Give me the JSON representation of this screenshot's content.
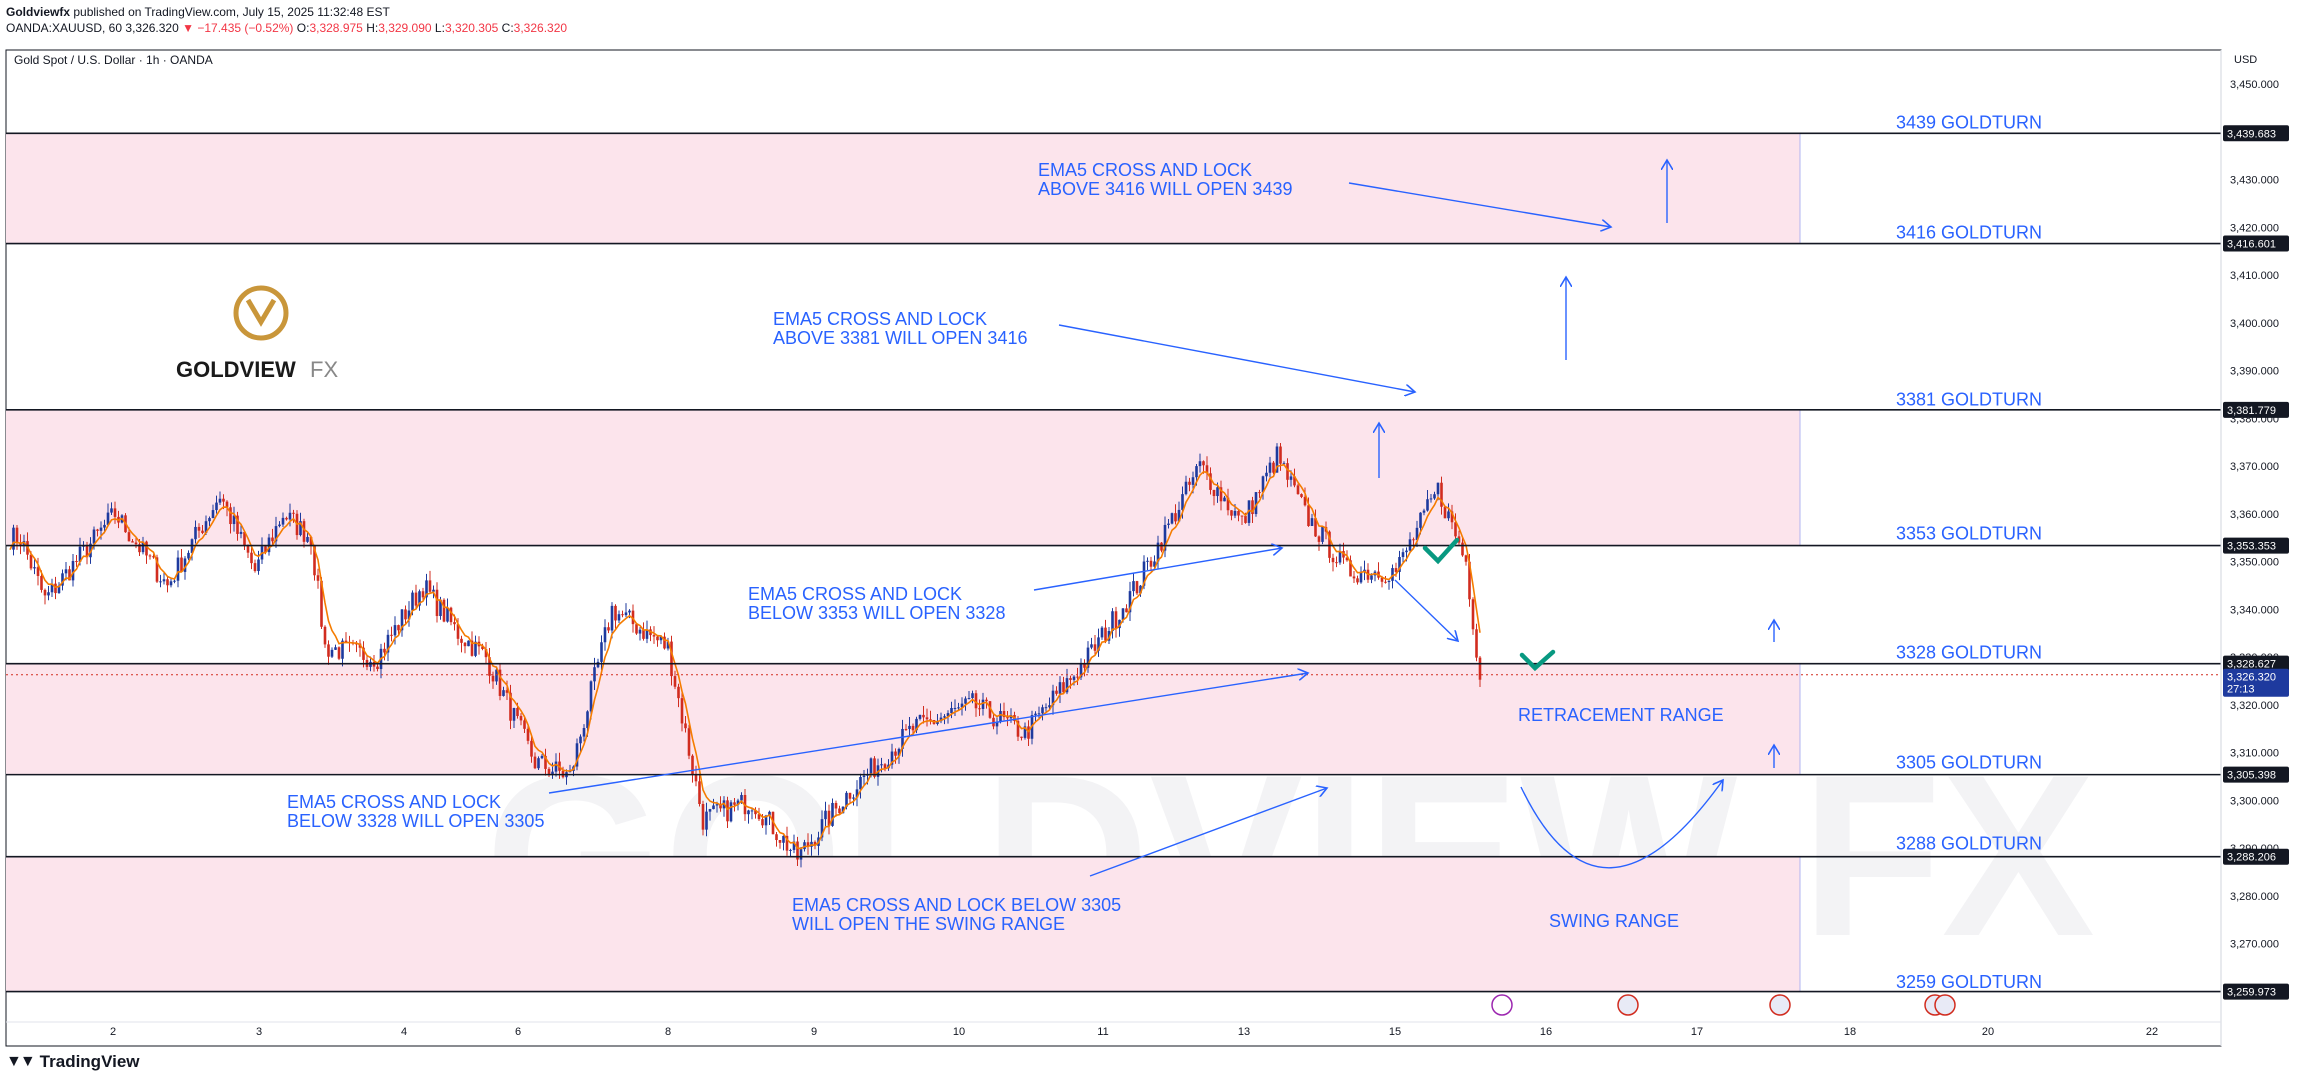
{
  "header": {
    "author": "Goldviewfx",
    "published": "published on TradingView.com, July 15, 2025 11:32:48 EST",
    "symbol": "OANDA:XAUUSD, 60",
    "last": "3,326.320",
    "change": "−17.435 (−0.52%)",
    "o_label": "O:",
    "o_value": "3,328.975",
    "h_label": "H:",
    "h_value": "3,329.090",
    "l_label": "L:",
    "l_value": "3,320.305",
    "c_label": "C:",
    "c_value": "3,326.320"
  },
  "footer": {
    "brand": "TradingView"
  },
  "logo": {
    "name": "GOLDVIEW",
    "suffix": "FX",
    "watermark": "GOLDVIEW FX"
  },
  "colors": {
    "zone": "#fce4ec",
    "zone_edge": "#b2b5f0",
    "annotation": "#2962ff",
    "bull": "#1e3a9e",
    "bear": "#d12c1f",
    "ema": "#f57c00",
    "check": "#089981",
    "gold": "#c9963a",
    "price_tag": "#1e3a9e"
  },
  "chart_data": {
    "type": "candlestick",
    "title": "Gold Spot / U.S. Dollar · 1h · OANDA",
    "currency": "USD",
    "ylim": [
      3252,
      3456
    ],
    "y_ticks": [
      {
        "v": 3450,
        "label": "3,450.000"
      },
      {
        "v": 3430,
        "label": "3,430.000"
      },
      {
        "v": 3420,
        "label": "3,420.000"
      },
      {
        "v": 3410,
        "label": "3,410.000"
      },
      {
        "v": 3400,
        "label": "3,400.000"
      },
      {
        "v": 3390,
        "label": "3,390.000"
      },
      {
        "v": 3380,
        "label": "3,380.000"
      },
      {
        "v": 3370,
        "label": "3,370.000"
      },
      {
        "v": 3360,
        "label": "3,360.000"
      },
      {
        "v": 3350,
        "label": "3,350.000"
      },
      {
        "v": 3340,
        "label": "3,340.000"
      },
      {
        "v": 3330,
        "label": "3,330.000"
      },
      {
        "v": 3320,
        "label": "3,320.000"
      },
      {
        "v": 3310,
        "label": "3,310.000"
      },
      {
        "v": 3300,
        "label": "3,300.000"
      },
      {
        "v": 3290,
        "label": "3,290.000"
      },
      {
        "v": 3280,
        "label": "3,280.000"
      },
      {
        "v": 3270,
        "label": "3,270.000"
      }
    ],
    "x_ticks": [
      "2",
      "3",
      "4",
      "6",
      "8",
      "9",
      "10",
      "11",
      "13",
      "15",
      "16",
      "17",
      "18",
      "20",
      "22"
    ],
    "price_tags": [
      {
        "v": 3439.683,
        "label": "3,439.683"
      },
      {
        "v": 3416.601,
        "label": "3,416.601"
      },
      {
        "v": 3381.779,
        "label": "3,381.779"
      },
      {
        "v": 3353.353,
        "label": "3,353.353"
      },
      {
        "v": 3328.627,
        "label": "3,328.627"
      },
      {
        "v": 3305.398,
        "label": "3,305.398"
      },
      {
        "v": 3288.206,
        "label": "3,288.206"
      },
      {
        "v": 3259.973,
        "label": "3,259.973"
      }
    ],
    "current_price": {
      "v": 3326.32,
      "label": "3,326.320",
      "countdown": "27:13"
    },
    "goldturns": [
      {
        "v": 3439,
        "label": "3439 GOLDTURN"
      },
      {
        "v": 3416,
        "label": "3416 GOLDTURN"
      },
      {
        "v": 3381,
        "label": "3381 GOLDTURN"
      },
      {
        "v": 3353,
        "label": "3353 GOLDTURN"
      },
      {
        "v": 3328,
        "label": "3328 GOLDTURN"
      },
      {
        "v": 3305,
        "label": "3305 GOLDTURN"
      },
      {
        "v": 3288,
        "label": "3288 GOLDTURN"
      },
      {
        "v": 3259,
        "label": "3259 GOLDTURN"
      }
    ],
    "zones": [
      [
        3416.601,
        3439.683
      ],
      [
        3353.353,
        3381.779
      ],
      [
        3305.398,
        3328.627
      ],
      [
        3259.973,
        3288.206
      ]
    ],
    "annotations": [
      {
        "line1": "EMA5 CROSS AND LOCK",
        "line2": "ABOVE 3416 WILL OPEN 3439"
      },
      {
        "line1": "EMA5 CROSS AND LOCK",
        "line2": "ABOVE 3381 WILL OPEN 3416"
      },
      {
        "line1": "EMA5 CROSS AND LOCK",
        "line2": "BELOW 3353 WILL OPEN 3328"
      },
      {
        "line1": "EMA5 CROSS AND LOCK",
        "line2": "BELOW 3328 WILL OPEN 3305"
      },
      {
        "line1": "EMA5 CROSS AND LOCK BELOW 3305",
        "line2": "WILL OPEN THE SWING RANGE"
      }
    ],
    "range_labels": [
      "RETRACEMENT RANGE",
      "SWING RANGE"
    ],
    "anchors": [
      [
        3355,
        3
      ],
      [
        3342,
        10
      ],
      [
        3360,
        30
      ],
      [
        3345,
        45
      ],
      [
        3364,
        60
      ],
      [
        3348,
        70
      ],
      [
        3360,
        78
      ],
      [
        3355,
        86
      ],
      [
        3332,
        90
      ],
      [
        3330,
        105
      ],
      [
        3345,
        118
      ],
      [
        3335,
        128
      ],
      [
        3330,
        136
      ],
      [
        3308,
        150
      ],
      [
        3305,
        160
      ],
      [
        3340,
        172
      ],
      [
        3332,
        188
      ],
      [
        3296,
        198
      ],
      [
        3300,
        212
      ],
      [
        3288,
        225
      ],
      [
        3302,
        240
      ],
      [
        3315,
        258
      ],
      [
        3320,
        275
      ],
      [
        3314,
        290
      ],
      [
        3330,
        308
      ],
      [
        3345,
        322
      ],
      [
        3370,
        340
      ],
      [
        3358,
        352
      ],
      [
        3372,
        362
      ],
      [
        3360,
        370
      ],
      [
        3348,
        382
      ],
      [
        3348,
        396
      ],
      [
        3365,
        408
      ],
      [
        3350,
        416
      ],
      [
        3326,
        420
      ]
    ]
  }
}
